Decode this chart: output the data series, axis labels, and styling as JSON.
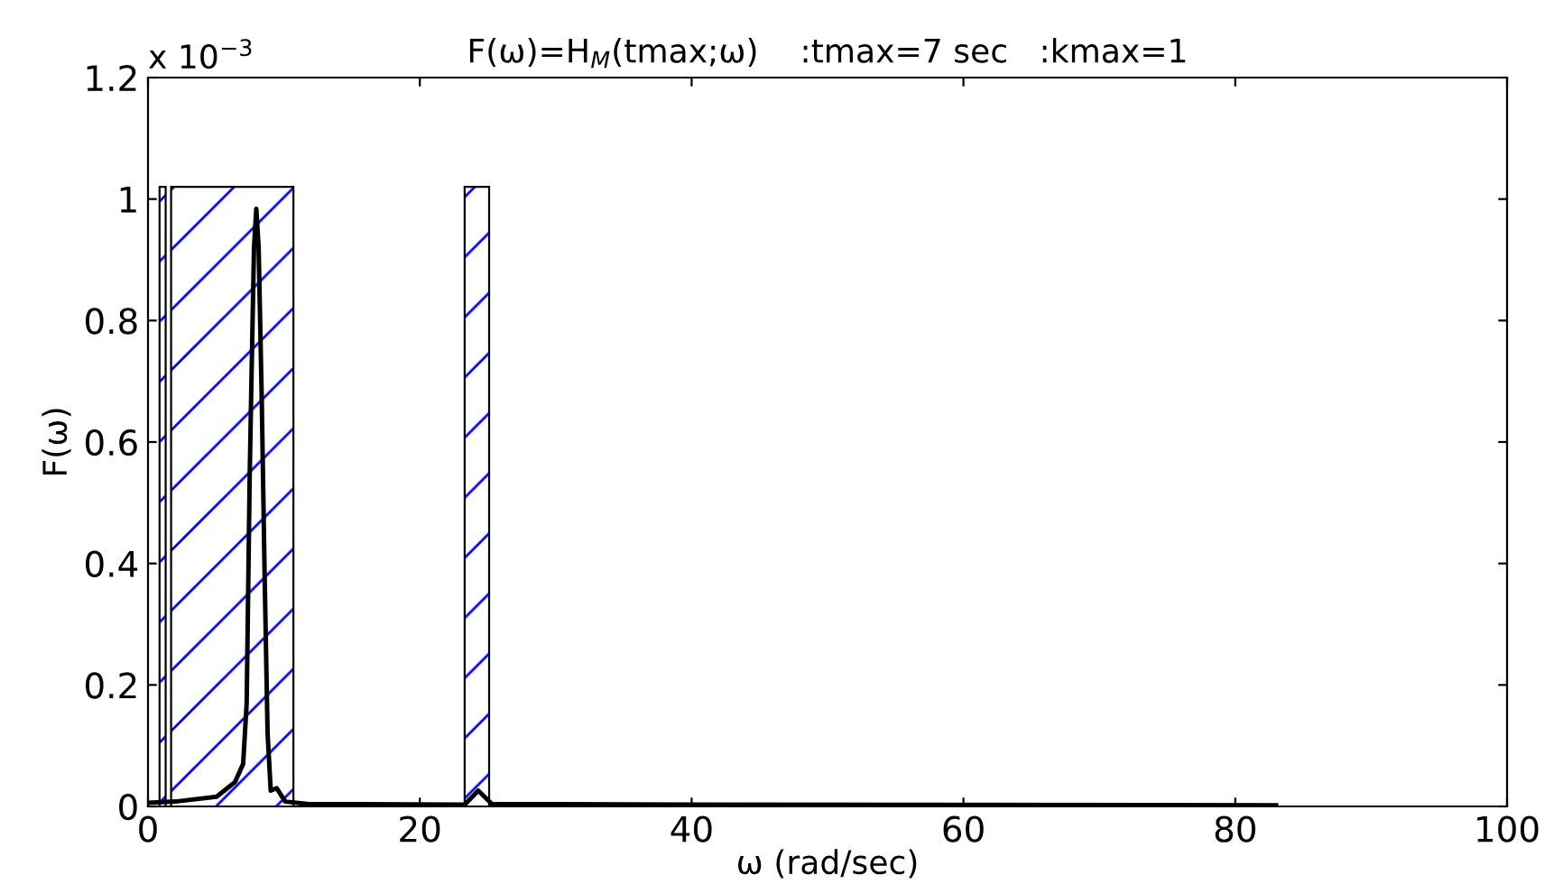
{
  "chart_data": {
    "type": "line",
    "title": "F(ω)=H$_{M}$(tmax;ω)    :tmax=7 sec   :kmax=1",
    "xlabel": "ω (rad/sec)",
    "ylabel": "F(ω)",
    "annotations": [
      "x 10$^{−3}$"
    ],
    "x": [
      0,
      2,
      5.05,
      6.4,
      7.0,
      7.26,
      7.48,
      7.61,
      7.8,
      7.97,
      8.14,
      8.37,
      8.59,
      8.8,
      9.03,
      9.47,
      10.1,
      11.7,
      23.3,
      24.3,
      25.3,
      40,
      83
    ],
    "series": [
      {
        "color": "#000000",
        "values": [
          0.006,
          0.008,
          0.016,
          0.04,
          0.07,
          0.17,
          0.54,
          0.7,
          0.92,
          0.984,
          0.92,
          0.67,
          0.37,
          0.12,
          0.026,
          0.03,
          0.008,
          0.004,
          0.003,
          0.026,
          0.004,
          0.003,
          0.002
        ]
      }
    ],
    "bands": [
      {
        "axis": "x",
        "from": 0.85,
        "to": 1.3,
        "color": "#0000ff"
      },
      {
        "axis": "x",
        "from": 1.7,
        "to": 10.7,
        "color": "#0000ff"
      },
      {
        "axis": "x",
        "from": 23.3,
        "to": 25.1,
        "color": "#0000ff"
      }
    ],
    "xlim": [
      0,
      100
    ],
    "xticks": [
      0,
      20,
      40,
      60,
      80,
      100
    ],
    "ylim": [
      0,
      1.2
    ],
    "yticks": [
      0,
      0.2,
      0.4,
      0.6,
      0.8,
      1,
      1.2
    ],
    "grid": false,
    "legend": false,
    "marker": "none",
    "line_style": "solid"
  }
}
